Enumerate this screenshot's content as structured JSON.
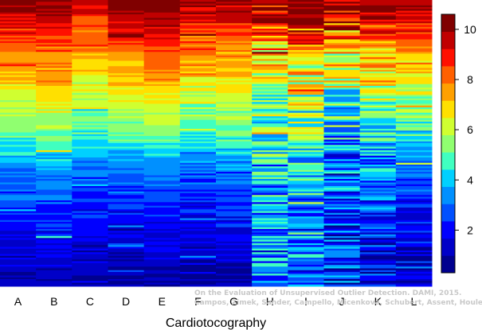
{
  "chart_data": {
    "type": "heatmap",
    "xlabel": "Cardiotocography",
    "ylabel": "",
    "title": "",
    "categories": [
      "A",
      "B",
      "C",
      "D",
      "E",
      "F",
      "G",
      "H",
      "I",
      "J",
      "K",
      "L"
    ],
    "rows": 160,
    "colorbar": {
      "min": 0.3,
      "max": 10.6,
      "ticks": [
        2,
        4,
        6,
        8,
        10
      ]
    },
    "colormap": [
      "#00008f",
      "#0000c8",
      "#0000ff",
      "#0050ff",
      "#0090ff",
      "#00d0ff",
      "#40ffc0",
      "#90ff70",
      "#d0ff30",
      "#ffe000",
      "#ffa000",
      "#ff6000",
      "#ff1000",
      "#c00000",
      "#800000"
    ],
    "column_profiles": [
      {
        "name": "A",
        "top": 10.0,
        "knee": 8.0,
        "mid": 4.5,
        "low": 0.9,
        "noise": 0.6
      },
      {
        "name": "B",
        "top": 10.2,
        "knee": 8.2,
        "mid": 4.8,
        "low": 1.0,
        "noise": 0.6
      },
      {
        "name": "C",
        "top": 9.6,
        "knee": 7.4,
        "mid": 4.2,
        "low": 0.9,
        "noise": 0.6
      },
      {
        "name": "D",
        "top": 10.4,
        "knee": 8.0,
        "mid": 4.4,
        "low": 0.8,
        "noise": 0.5
      },
      {
        "name": "E",
        "top": 10.6,
        "knee": 8.6,
        "mid": 4.6,
        "low": 0.8,
        "noise": 0.5
      },
      {
        "name": "F",
        "top": 10.0,
        "knee": 7.8,
        "mid": 4.0,
        "low": 0.9,
        "noise": 0.7
      },
      {
        "name": "G",
        "top": 10.0,
        "knee": 7.6,
        "mid": 4.4,
        "low": 1.0,
        "noise": 0.6
      },
      {
        "name": "H",
        "top": 10.2,
        "knee": 7.0,
        "mid": 4.0,
        "low": 3.2,
        "noise": 1.8
      },
      {
        "name": "I",
        "top": 10.3,
        "knee": 7.2,
        "mid": 4.4,
        "low": 3.0,
        "noise": 1.8
      },
      {
        "name": "J",
        "top": 10.0,
        "knee": 6.8,
        "mid": 3.2,
        "low": 2.0,
        "noise": 2.0
      },
      {
        "name": "K",
        "top": 10.2,
        "knee": 7.2,
        "mid": 3.8,
        "low": 1.6,
        "noise": 1.4
      },
      {
        "name": "L",
        "top": 10.4,
        "knee": 7.6,
        "mid": 3.8,
        "low": 1.2,
        "noise": 1.0
      }
    ]
  },
  "watermark": {
    "line1": "On the Evaluation of Unsupervised Outlier Detection. DAMI, 2015.",
    "line2": "Campos, Zimek, Sander, Campello, Micenková, Schubert, Assent, Houle"
  }
}
